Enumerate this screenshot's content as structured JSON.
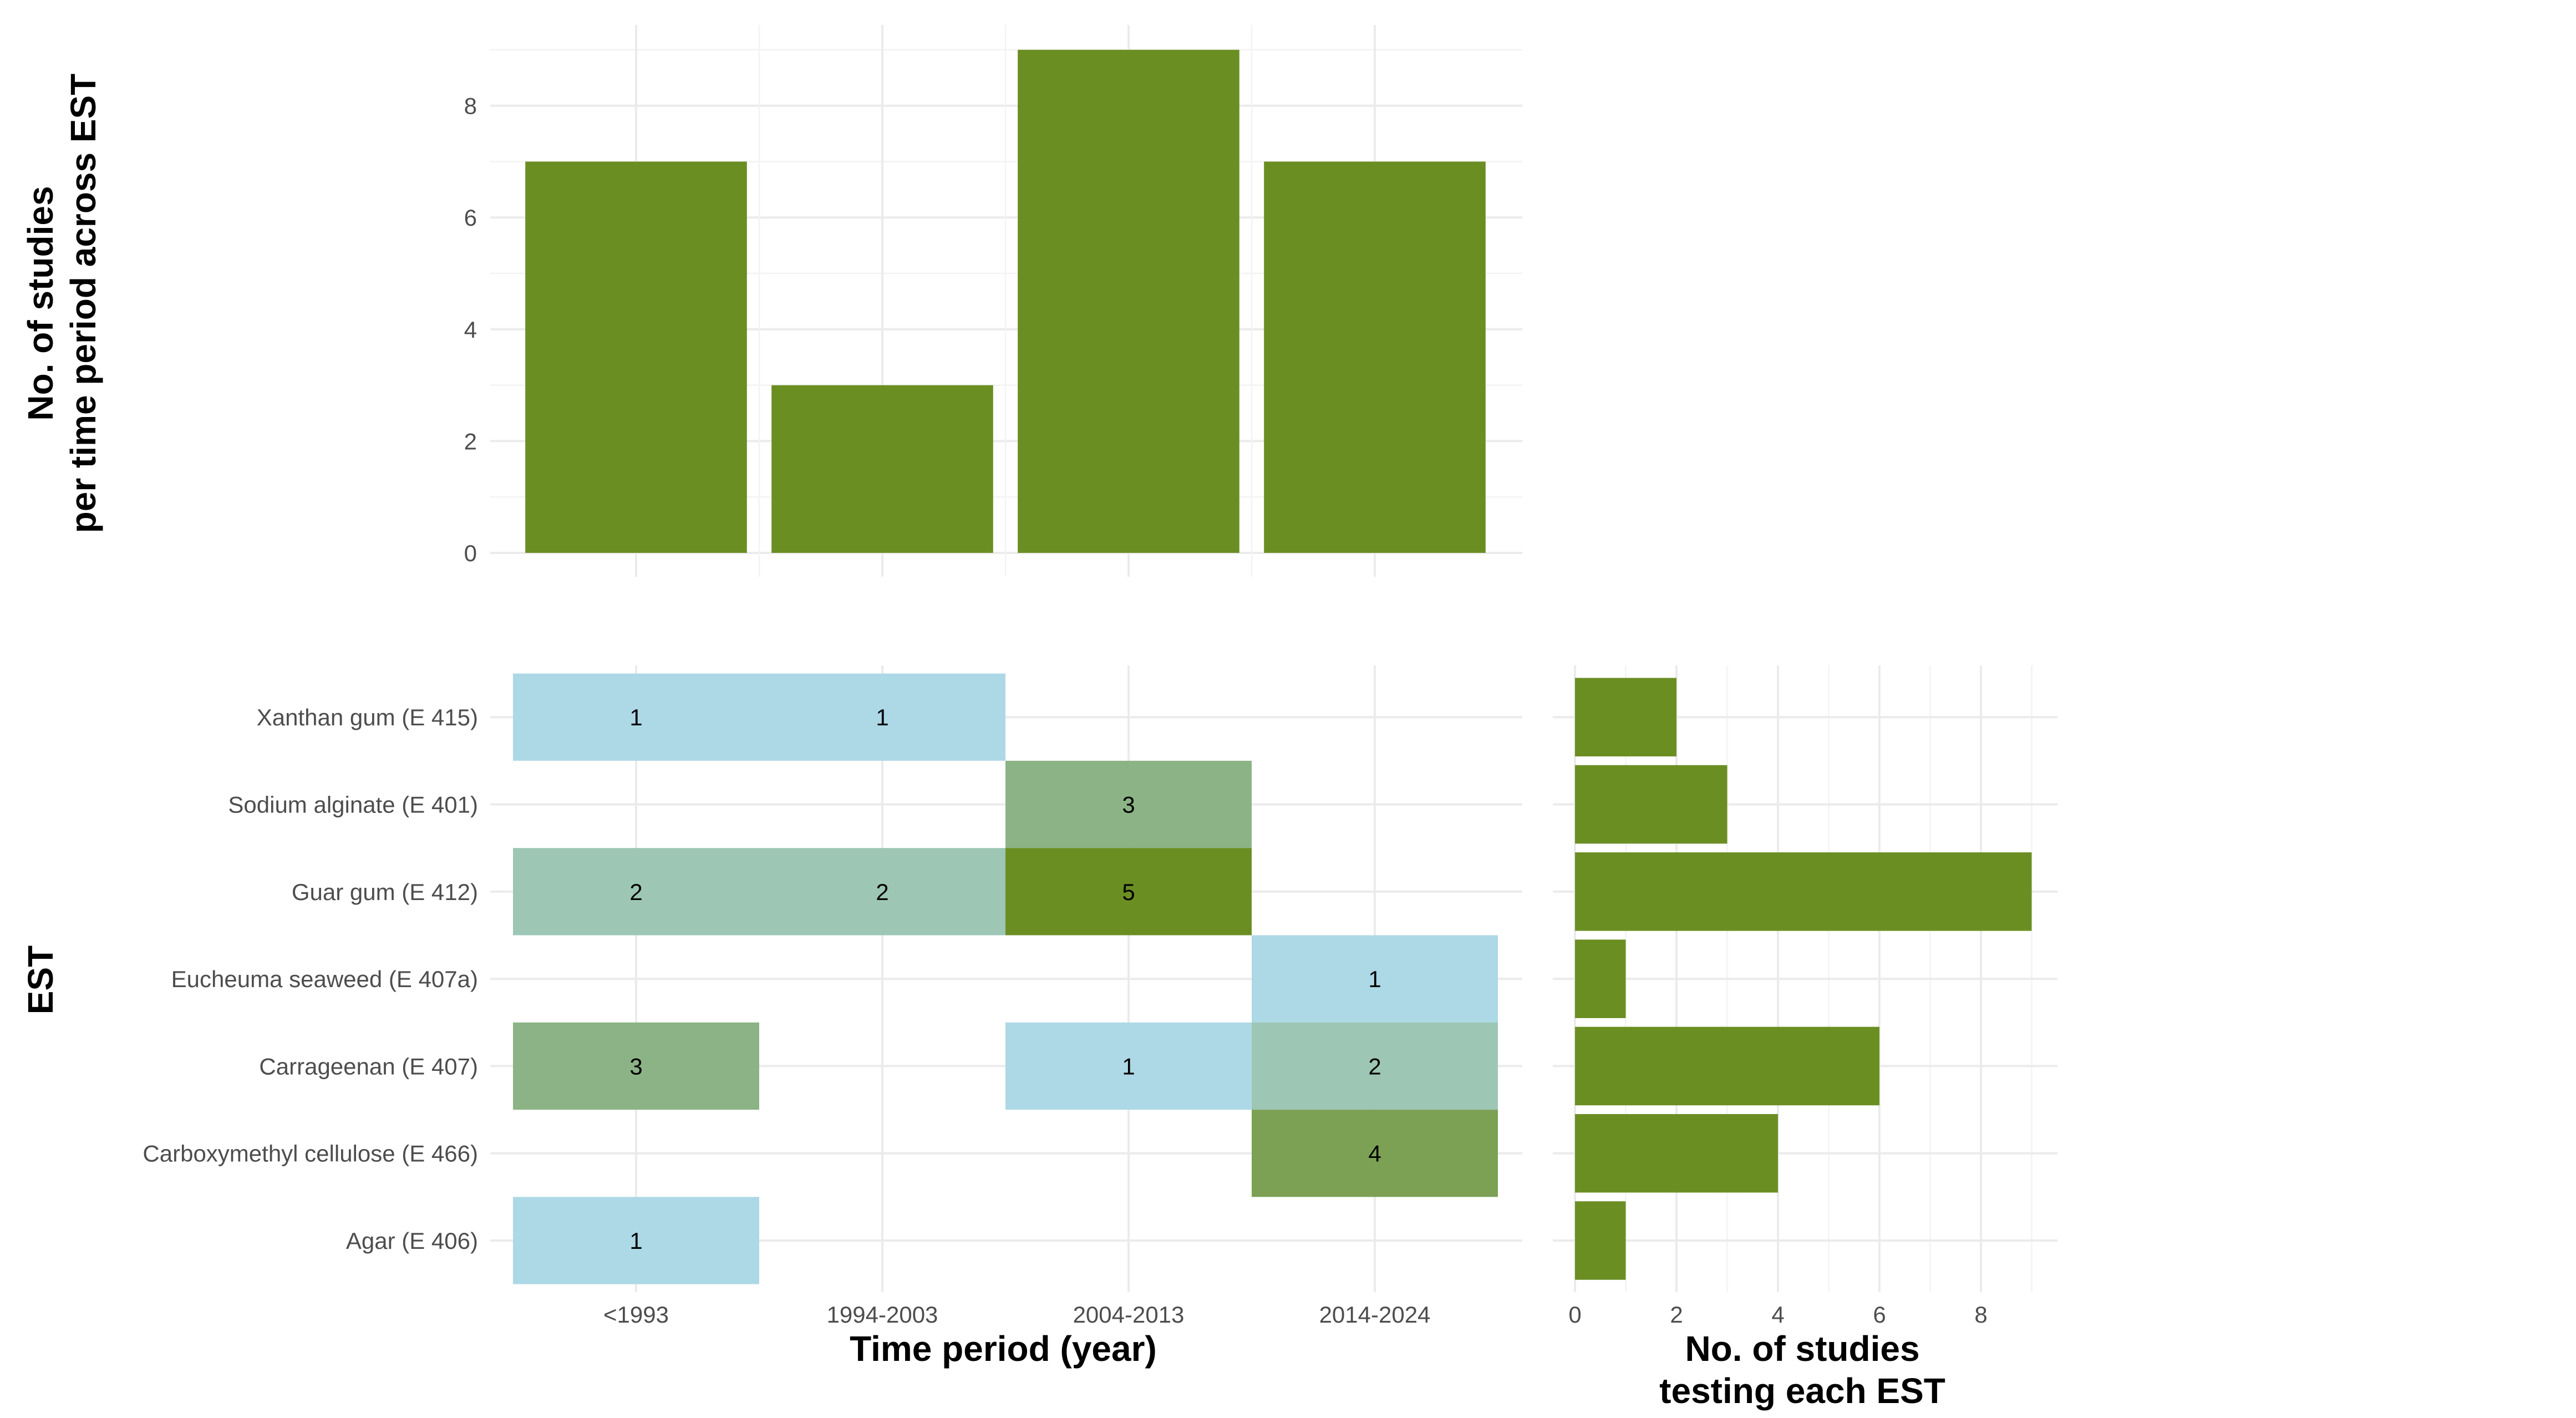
{
  "colors": {
    "bar": "#6b8e23",
    "heat_low": "#add8e6",
    "heat_high": "#6b8e23"
  },
  "chart_data": [
    {
      "type": "bar",
      "categories": [
        "<1993",
        "1994-2003",
        "2004-2013",
        "2014-2024"
      ],
      "values": [
        7,
        3,
        9,
        7
      ],
      "xlabel": "",
      "ylabel": "No. of studies\nper time period across EST",
      "ylim": [
        0,
        9.45
      ],
      "yticks": [
        0,
        2,
        4,
        6,
        8
      ],
      "grid": true
    },
    {
      "type": "heatmap",
      "x": [
        "<1993",
        "1994-2003",
        "2004-2013",
        "2014-2024"
      ],
      "y": [
        "Agar (E 406)",
        "Carboxymethyl cellulose (E 466)",
        "Carrageenan (E 407)",
        "Eucheuma seaweed (E 407a)",
        "Guar gum (E 412)",
        "Sodium alginate (E 401)",
        "Xanthan gum (E 415)"
      ],
      "cells": [
        {
          "x": "<1993",
          "y": "Xanthan gum (E 415)",
          "value": 1
        },
        {
          "x": "1994-2003",
          "y": "Xanthan gum (E 415)",
          "value": 1
        },
        {
          "x": "2004-2013",
          "y": "Sodium alginate (E 401)",
          "value": 3
        },
        {
          "x": "<1993",
          "y": "Guar gum (E 412)",
          "value": 2
        },
        {
          "x": "1994-2003",
          "y": "Guar gum (E 412)",
          "value": 2
        },
        {
          "x": "2004-2013",
          "y": "Guar gum (E 412)",
          "value": 5
        },
        {
          "x": "2014-2024",
          "y": "Eucheuma seaweed (E 407a)",
          "value": 1
        },
        {
          "x": "<1993",
          "y": "Carrageenan (E 407)",
          "value": 3
        },
        {
          "x": "2004-2013",
          "y": "Carrageenan (E 407)",
          "value": 1
        },
        {
          "x": "2014-2024",
          "y": "Carrageenan (E 407)",
          "value": 2
        },
        {
          "x": "2014-2024",
          "y": "Carboxymethyl cellulose (E 466)",
          "value": 4
        },
        {
          "x": "<1993",
          "y": "Agar (E 406)",
          "value": 1
        }
      ],
      "xlabel": "Time period (year)",
      "ylabel": "EST",
      "color_range": [
        1,
        5
      ],
      "grid": true
    },
    {
      "type": "bar",
      "orientation": "horizontal",
      "categories": [
        "Agar (E 406)",
        "Carboxymethyl cellulose (E 466)",
        "Carrageenan (E 407)",
        "Eucheuma seaweed (E 407a)",
        "Guar gum (E 412)",
        "Sodium alginate (E 401)",
        "Xanthan gum (E 415)"
      ],
      "values": [
        1,
        4,
        6,
        1,
        9,
        3,
        2
      ],
      "xlabel": "No. of studies\ntesting each EST",
      "ylabel": "",
      "xlim": [
        0,
        9.45
      ],
      "xticks": [
        0,
        2,
        4,
        6,
        8
      ],
      "grid": true
    }
  ]
}
